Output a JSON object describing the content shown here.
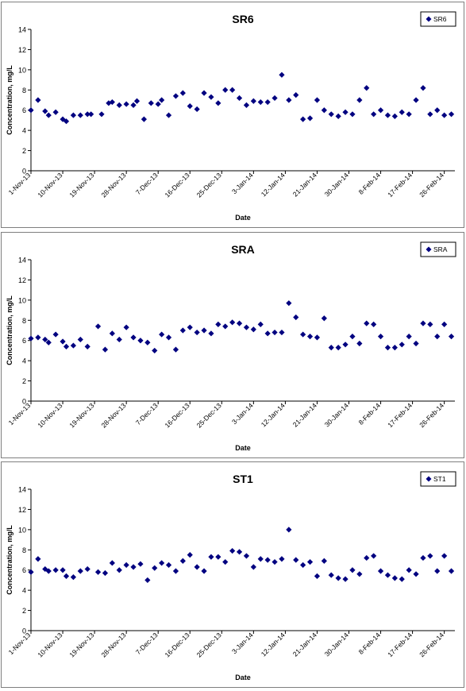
{
  "chart_data": [
    {
      "type": "scatter",
      "title": "SR6",
      "xlabel": "Date",
      "ylabel": "Concentration, mg/L",
      "ylim": [
        0,
        14
      ],
      "yticks": [
        0,
        2,
        4,
        6,
        8,
        10,
        12,
        14
      ],
      "xlim": [
        "2013-11-01",
        "2014-03-01"
      ],
      "xtick_labels": [
        "1-Nov-13",
        "10-Nov-13",
        "19-Nov-13",
        "28-Nov-13",
        "7-Dec-13",
        "16-Dec-13",
        "25-Dec-13",
        "3-Jan-14",
        "12-Jan-14",
        "21-Jan-14",
        "30-Jan-14",
        "8-Feb-14",
        "17-Feb-14",
        "26-Feb-14"
      ],
      "xtick_dates": [
        "2013-11-01",
        "2013-11-10",
        "2013-11-19",
        "2013-11-28",
        "2013-12-07",
        "2013-12-16",
        "2013-12-25",
        "2014-01-03",
        "2014-01-12",
        "2014-01-21",
        "2014-01-30",
        "2014-02-08",
        "2014-02-17",
        "2014-02-26"
      ],
      "legend": "top-right",
      "marker_color": "#000080",
      "series": [
        {
          "name": "SR6",
          "x": [
            "2013-11-01",
            "2013-11-03",
            "2013-11-05",
            "2013-11-06",
            "2013-11-08",
            "2013-11-10",
            "2013-11-11",
            "2013-11-13",
            "2013-11-15",
            "2013-11-17",
            "2013-11-18",
            "2013-11-21",
            "2013-11-23",
            "2013-11-24",
            "2013-11-26",
            "2013-11-28",
            "2013-11-30",
            "2013-12-01",
            "2013-12-03",
            "2013-12-05",
            "2013-12-07",
            "2013-12-08",
            "2013-12-10",
            "2013-12-12",
            "2013-12-14",
            "2013-12-16",
            "2013-12-18",
            "2013-12-20",
            "2013-12-22",
            "2013-12-24",
            "2013-12-26",
            "2013-12-28",
            "2013-12-30",
            "2014-01-01",
            "2014-01-03",
            "2014-01-05",
            "2014-01-07",
            "2014-01-09",
            "2014-01-11",
            "2014-01-13",
            "2014-01-15",
            "2014-01-17",
            "2014-01-19",
            "2014-01-21",
            "2014-01-23",
            "2014-01-25",
            "2014-01-27",
            "2014-01-29",
            "2014-01-31",
            "2014-02-02",
            "2014-02-04",
            "2014-02-06",
            "2014-02-08",
            "2014-02-10",
            "2014-02-12",
            "2014-02-14",
            "2014-02-16",
            "2014-02-18",
            "2014-02-20",
            "2014-02-22",
            "2014-02-24",
            "2014-02-26",
            "2014-02-28"
          ],
          "y": [
            6.0,
            7.0,
            5.9,
            5.5,
            5.8,
            5.1,
            4.9,
            5.5,
            5.5,
            5.6,
            5.6,
            5.6,
            6.7,
            6.8,
            6.5,
            6.6,
            6.5,
            6.9,
            5.1,
            6.7,
            6.6,
            7.0,
            5.5,
            7.4,
            7.7,
            6.4,
            6.1,
            7.7,
            7.3,
            6.7,
            8.0,
            8.0,
            7.2,
            6.5,
            6.9,
            6.8,
            6.8,
            7.2,
            9.5,
            7.0,
            7.5,
            5.1,
            5.2,
            7.0,
            6.0,
            5.6,
            5.4,
            5.8,
            5.6,
            7.0,
            8.2,
            5.6,
            6.0,
            5.5,
            5.4,
            5.8,
            5.6,
            7.0,
            8.2,
            5.6,
            6.0,
            5.5,
            5.6
          ]
        }
      ]
    },
    {
      "type": "scatter",
      "title": "SRA",
      "xlabel": "Date",
      "ylabel": "Concentration, mg/L",
      "ylim": [
        0,
        14
      ],
      "yticks": [
        0,
        2,
        4,
        6,
        8,
        10,
        12,
        14
      ],
      "xlim": [
        "2013-11-01",
        "2014-03-01"
      ],
      "xtick_labels": [
        "1-Nov-13",
        "10-Nov-13",
        "19-Nov-13",
        "28-Nov-13",
        "7-Dec-13",
        "16-Dec-13",
        "25-Dec-13",
        "3-Jan-14",
        "12-Jan-14",
        "21-Jan-14",
        "30-Jan-14",
        "8-Feb-14",
        "17-Feb-14",
        "26-Feb-14"
      ],
      "xtick_dates": [
        "2013-11-01",
        "2013-11-10",
        "2013-11-19",
        "2013-11-28",
        "2013-12-07",
        "2013-12-16",
        "2013-12-25",
        "2014-01-03",
        "2014-01-12",
        "2014-01-21",
        "2014-01-30",
        "2014-02-08",
        "2014-02-17",
        "2014-02-26"
      ],
      "legend": "top-right",
      "marker_color": "#000080",
      "series": [
        {
          "name": "SRA",
          "x": [
            "2013-11-01",
            "2013-11-03",
            "2013-11-05",
            "2013-11-06",
            "2013-11-08",
            "2013-11-10",
            "2013-11-11",
            "2013-11-13",
            "2013-11-15",
            "2013-11-17",
            "2013-11-20",
            "2013-11-22",
            "2013-11-24",
            "2013-11-26",
            "2013-11-28",
            "2013-11-30",
            "2013-12-02",
            "2013-12-04",
            "2013-12-06",
            "2013-12-08",
            "2013-12-10",
            "2013-12-12",
            "2013-12-14",
            "2013-12-16",
            "2013-12-18",
            "2013-12-20",
            "2013-12-22",
            "2013-12-24",
            "2013-12-26",
            "2013-12-28",
            "2013-12-30",
            "2014-01-01",
            "2014-01-03",
            "2014-01-05",
            "2014-01-07",
            "2014-01-09",
            "2014-01-11",
            "2014-01-13",
            "2014-01-15",
            "2014-01-17",
            "2014-01-19",
            "2014-01-21",
            "2014-01-23",
            "2014-01-25",
            "2014-01-27",
            "2014-01-29",
            "2014-01-31",
            "2014-02-02",
            "2014-02-04",
            "2014-02-06",
            "2014-02-08",
            "2014-02-10",
            "2014-02-12",
            "2014-02-14",
            "2014-02-16",
            "2014-02-18",
            "2014-02-20",
            "2014-02-22",
            "2014-02-24",
            "2014-02-26",
            "2014-02-28"
          ],
          "y": [
            6.2,
            6.3,
            6.1,
            5.8,
            6.6,
            5.9,
            5.4,
            5.5,
            6.1,
            5.4,
            7.4,
            5.1,
            6.7,
            6.1,
            7.3,
            6.3,
            6.0,
            5.8,
            5.0,
            6.6,
            6.3,
            5.1,
            7.0,
            7.3,
            6.8,
            7.0,
            6.7,
            7.6,
            7.4,
            7.8,
            7.7,
            7.3,
            7.1,
            7.6,
            6.7,
            6.8,
            6.8,
            9.7,
            8.3,
            6.6,
            6.4,
            6.3,
            8.2,
            5.3,
            5.3,
            5.6,
            6.4,
            5.7,
            7.7,
            7.6,
            6.4,
            5.3,
            5.3,
            5.6,
            6.4,
            5.7,
            7.7,
            7.6,
            6.4,
            7.6,
            6.4
          ]
        }
      ]
    },
    {
      "type": "scatter",
      "title": "ST1",
      "xlabel": "Date",
      "ylabel": "Concentration, mg/L",
      "ylim": [
        0,
        14
      ],
      "yticks": [
        0,
        2,
        4,
        6,
        8,
        10,
        12,
        14
      ],
      "xlim": [
        "2013-11-01",
        "2014-03-01"
      ],
      "xtick_labels": [
        "1-Nov-13",
        "10-Nov-13",
        "19-Nov-13",
        "28-Nov-13",
        "7-Dec-13",
        "16-Dec-13",
        "25-Dec-13",
        "3-Jan-14",
        "12-Jan-14",
        "21-Jan-14",
        "30-Jan-14",
        "8-Feb-14",
        "17-Feb-14",
        "26-Feb-14"
      ],
      "xtick_dates": [
        "2013-11-01",
        "2013-11-10",
        "2013-11-19",
        "2013-11-28",
        "2013-12-07",
        "2013-12-16",
        "2013-12-25",
        "2014-01-03",
        "2014-01-12",
        "2014-01-21",
        "2014-01-30",
        "2014-02-08",
        "2014-02-17",
        "2014-02-26"
      ],
      "legend": "top-right",
      "marker_color": "#000080",
      "series": [
        {
          "name": "ST1",
          "x": [
            "2013-11-01",
            "2013-11-03",
            "2013-11-05",
            "2013-11-06",
            "2013-11-08",
            "2013-11-10",
            "2013-11-11",
            "2013-11-13",
            "2013-11-15",
            "2013-11-17",
            "2013-11-20",
            "2013-11-22",
            "2013-11-24",
            "2013-11-26",
            "2013-11-28",
            "2013-11-30",
            "2013-12-02",
            "2013-12-04",
            "2013-12-06",
            "2013-12-08",
            "2013-12-10",
            "2013-12-12",
            "2013-12-14",
            "2013-12-16",
            "2013-12-18",
            "2013-12-20",
            "2013-12-22",
            "2013-12-24",
            "2013-12-26",
            "2013-12-28",
            "2013-12-30",
            "2014-01-01",
            "2014-01-03",
            "2014-01-05",
            "2014-01-07",
            "2014-01-09",
            "2014-01-11",
            "2014-01-13",
            "2014-01-15",
            "2014-01-17",
            "2014-01-19",
            "2014-01-21",
            "2014-01-23",
            "2014-01-25",
            "2014-01-27",
            "2014-01-29",
            "2014-01-31",
            "2014-02-02",
            "2014-02-04",
            "2014-02-06",
            "2014-02-08",
            "2014-02-10",
            "2014-02-12",
            "2014-02-14",
            "2014-02-16",
            "2014-02-18",
            "2014-02-20",
            "2014-02-22",
            "2014-02-24",
            "2014-02-26",
            "2014-02-28"
          ],
          "y": [
            5.8,
            7.1,
            6.1,
            5.9,
            6.0,
            6.0,
            5.4,
            5.3,
            5.9,
            6.1,
            5.8,
            5.7,
            6.7,
            6.0,
            6.5,
            6.3,
            6.6,
            5.0,
            6.2,
            6.7,
            6.5,
            5.9,
            6.9,
            7.5,
            6.3,
            5.9,
            7.3,
            7.3,
            6.8,
            7.9,
            7.8,
            7.4,
            6.3,
            7.1,
            7.0,
            6.8,
            7.1,
            10.0,
            7.0,
            6.5,
            6.8,
            5.4,
            6.9,
            5.5,
            5.2,
            5.1,
            6.0,
            5.6,
            7.2,
            7.4,
            5.9,
            5.5,
            5.2,
            5.1,
            6.0,
            5.6,
            7.2,
            7.4,
            5.9,
            7.4,
            5.9
          ]
        }
      ]
    }
  ]
}
